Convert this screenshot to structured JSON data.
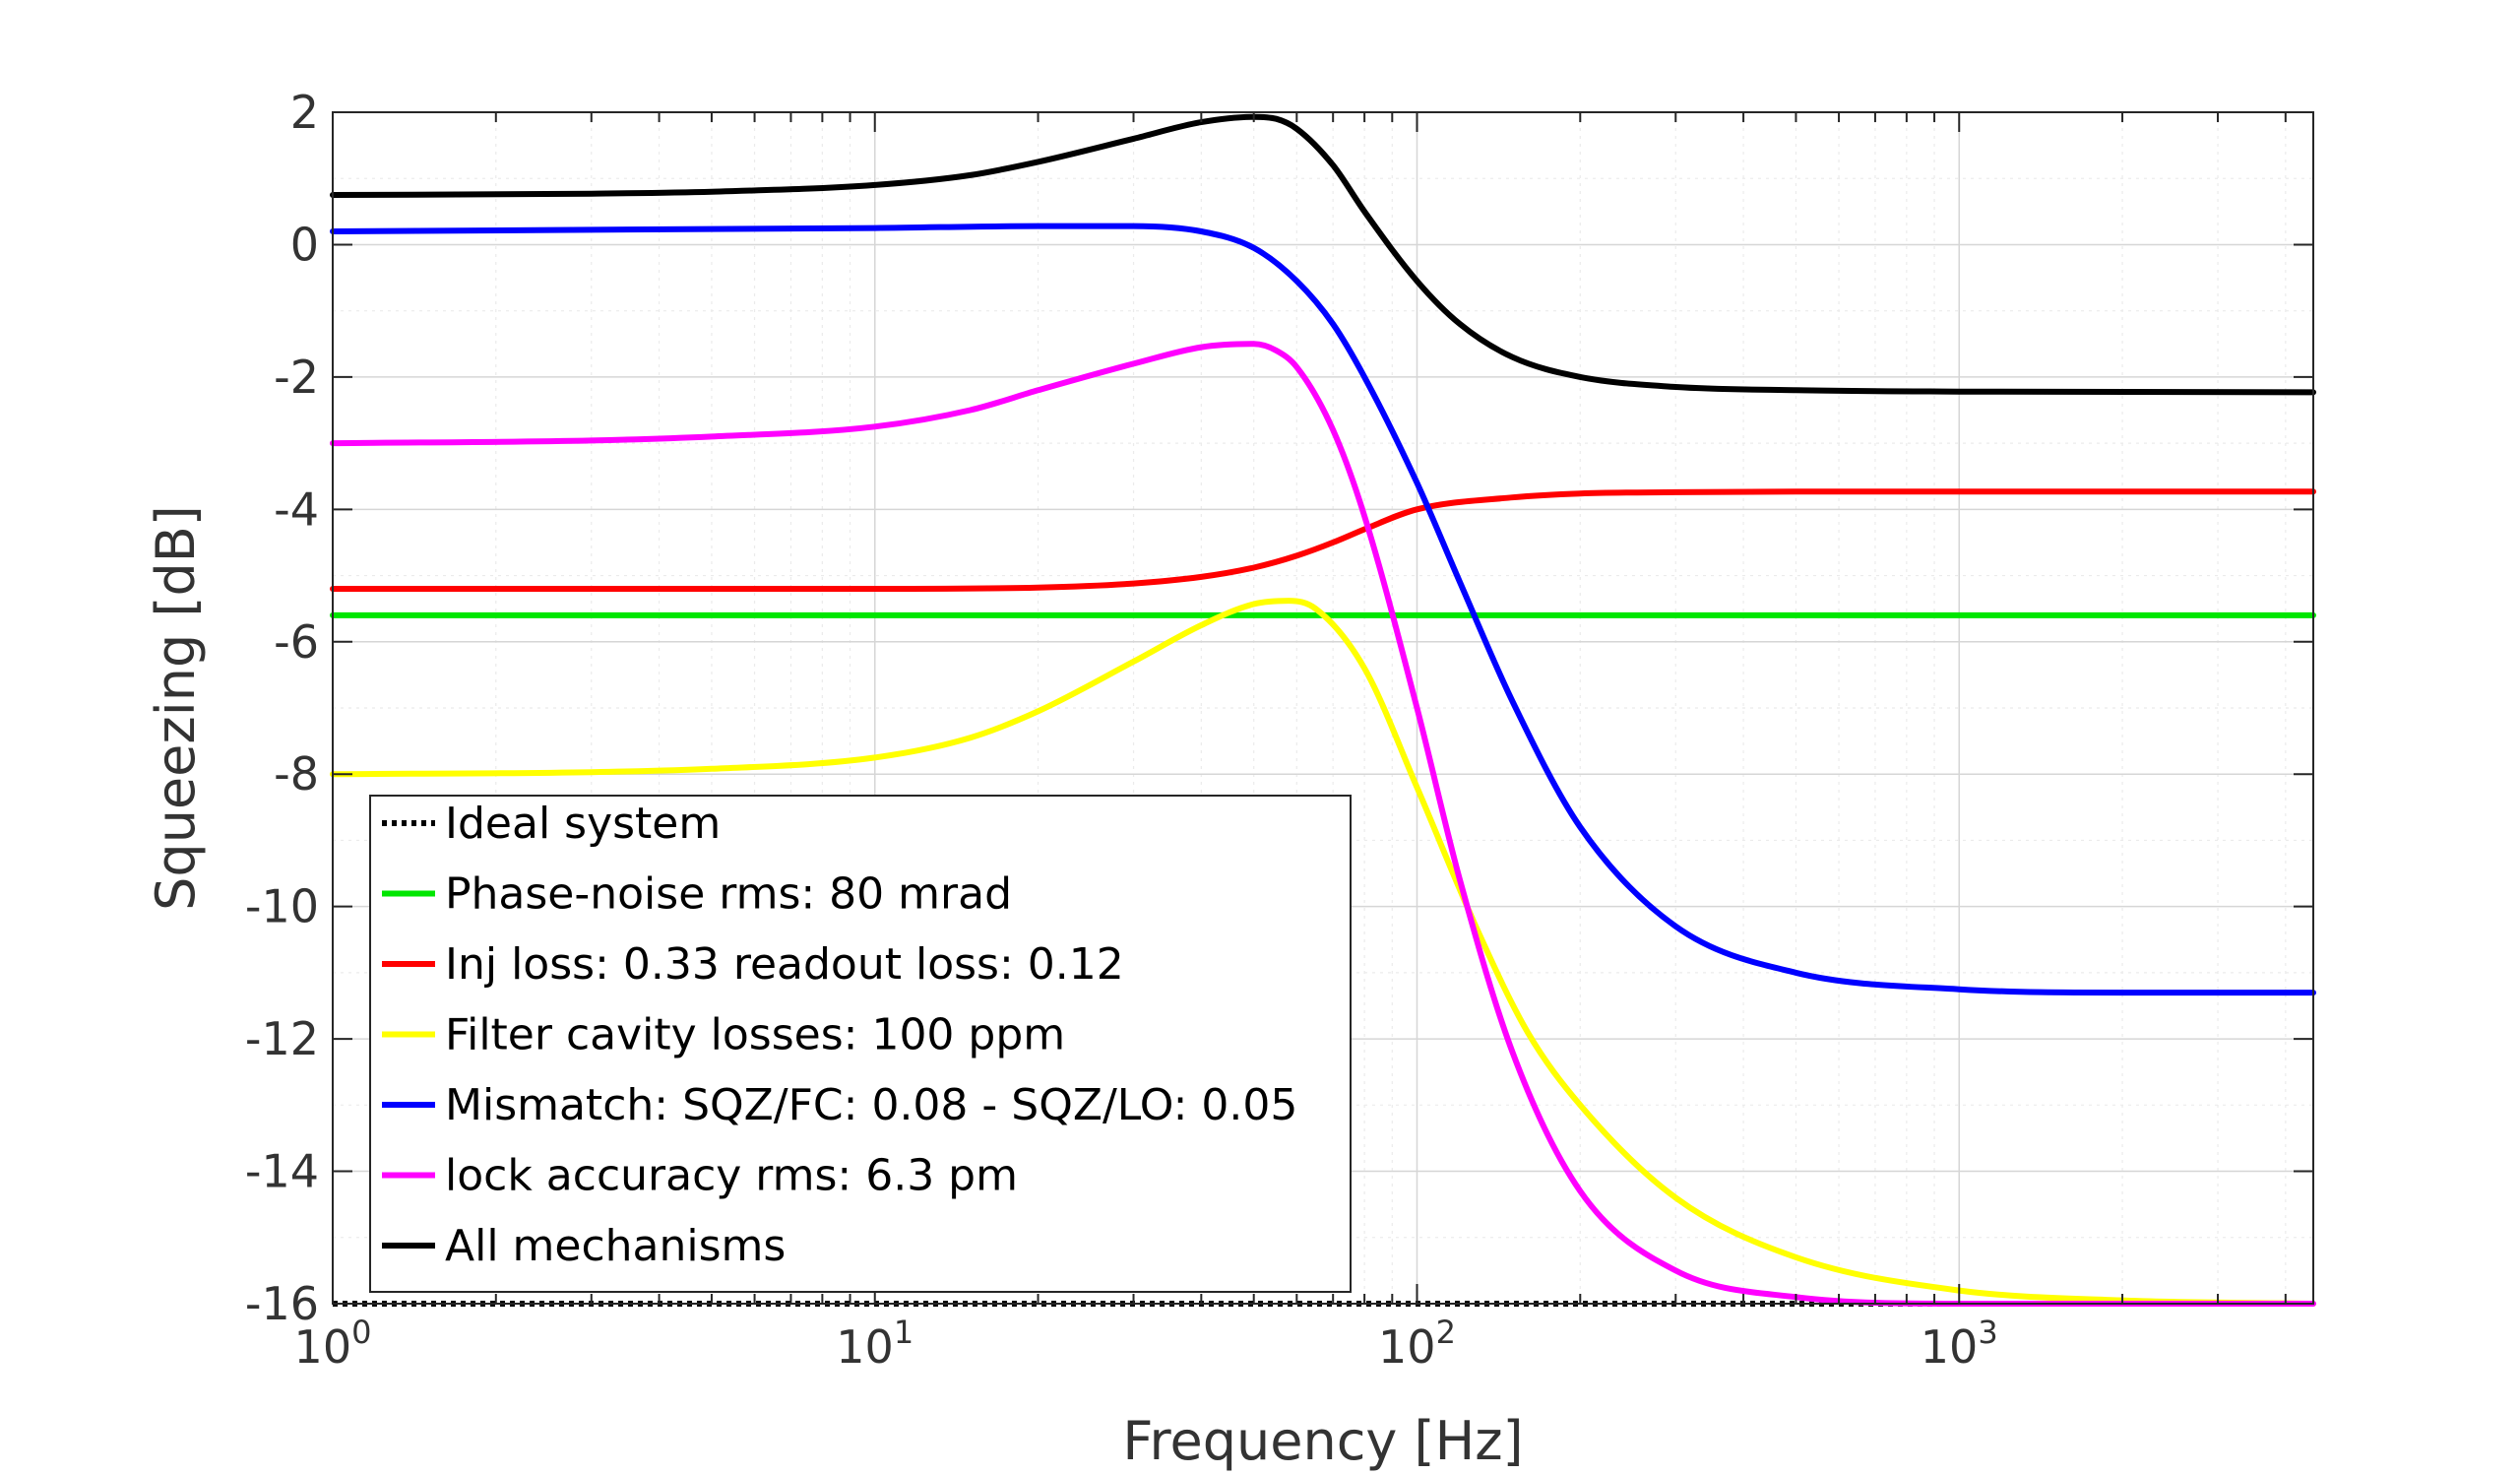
{
  "chart_data": {
    "type": "line",
    "xlabel": "Frequency [Hz]",
    "ylabel": "Squeezing [dB]",
    "xscale": "log",
    "xlim": [
      1,
      4500
    ],
    "ylim": [
      -16,
      2
    ],
    "grid": true,
    "legend_position": "bottom-left",
    "y_ticks": [
      "2",
      "0",
      "-2",
      "-4",
      "-6",
      "-8",
      "-10",
      "-12",
      "-14",
      "-16"
    ],
    "x_ticks": [
      {
        "base": "10",
        "exp": "0"
      },
      {
        "base": "10",
        "exp": "1"
      },
      {
        "base": "10",
        "exp": "2"
      },
      {
        "base": "10",
        "exp": "3"
      }
    ],
    "series": [
      {
        "name": "Ideal system",
        "color": "#000000",
        "style": "dotted",
        "x": [
          1,
          10,
          100,
          1000,
          4500
        ],
        "y": [
          -16,
          -16,
          -16,
          -16,
          -16
        ]
      },
      {
        "name": "Phase-noise rms: 80 mrad",
        "color": "#00e600",
        "style": "solid",
        "x": [
          1,
          10,
          100,
          1000,
          4500
        ],
        "y": [
          -5.6,
          -5.6,
          -5.6,
          -5.6,
          -5.6
        ]
      },
      {
        "name": "Inj loss: 0.33 readout loss: 0.12",
        "color": "#ff0000",
        "style": "solid",
        "x": [
          1,
          5,
          10,
          20,
          30,
          40,
          50,
          60,
          70,
          80,
          100,
          150,
          200,
          300,
          500,
          1000,
          4500
        ],
        "y": [
          -5.2,
          -5.2,
          -5.2,
          -5.18,
          -5.12,
          -5.02,
          -4.88,
          -4.7,
          -4.5,
          -4.3,
          -4.0,
          -3.82,
          -3.76,
          -3.74,
          -3.73,
          -3.73,
          -3.73
        ]
      },
      {
        "name": "Filter cavity losses: 100 ppm",
        "color": "#ffff00",
        "style": "solid",
        "x": [
          1,
          3,
          5,
          10,
          15,
          20,
          30,
          40,
          50,
          58,
          65,
          80,
          100,
          130,
          160,
          200,
          300,
          500,
          1000,
          2000,
          4500
        ],
        "y": [
          -8.0,
          -7.97,
          -7.92,
          -7.75,
          -7.45,
          -7.05,
          -6.3,
          -5.75,
          -5.43,
          -5.38,
          -5.5,
          -6.4,
          -8.2,
          -10.4,
          -11.9,
          -13.0,
          -14.4,
          -15.3,
          -15.8,
          -15.95,
          -16.0
        ]
      },
      {
        "name": "Mismatch: SQZ/FC: 0.08 - SQZ/LO: 0.05",
        "color": "#0000ff",
        "style": "solid",
        "x": [
          1,
          10,
          20,
          30,
          40,
          50,
          60,
          70,
          80,
          100,
          120,
          150,
          200,
          300,
          500,
          1000,
          2000,
          4500
        ],
        "y": [
          0.2,
          0.25,
          0.28,
          0.28,
          0.2,
          -0.05,
          -0.55,
          -1.2,
          -2.0,
          -3.6,
          -5.1,
          -6.9,
          -8.8,
          -10.3,
          -11.0,
          -11.25,
          -11.3,
          -11.3
        ]
      },
      {
        "name": "lock accuracy rms: 6.3 pm",
        "color": "#ff00ff",
        "style": "solid",
        "x": [
          1,
          3,
          5,
          10,
          15,
          20,
          30,
          40,
          50,
          55,
          60,
          70,
          80,
          100,
          120,
          150,
          200,
          300,
          500,
          1000,
          4500
        ],
        "y": [
          -3.0,
          -2.96,
          -2.9,
          -2.75,
          -2.5,
          -2.2,
          -1.8,
          -1.55,
          -1.5,
          -1.6,
          -1.85,
          -2.8,
          -4.1,
          -7.0,
          -9.6,
          -12.2,
          -14.3,
          -15.5,
          -15.9,
          -16.0,
          -16.0
        ]
      },
      {
        "name": "All mechanisms",
        "color": "#000000",
        "style": "solid",
        "x": [
          1,
          3,
          5,
          10,
          15,
          20,
          30,
          40,
          50,
          55,
          60,
          70,
          80,
          100,
          120,
          150,
          200,
          300,
          500,
          1000,
          4500
        ],
        "y": [
          0.75,
          0.77,
          0.8,
          0.9,
          1.05,
          1.25,
          1.6,
          1.85,
          1.93,
          1.9,
          1.75,
          1.2,
          0.5,
          -0.55,
          -1.2,
          -1.7,
          -2.0,
          -2.15,
          -2.2,
          -2.22,
          -2.23
        ]
      }
    ]
  }
}
